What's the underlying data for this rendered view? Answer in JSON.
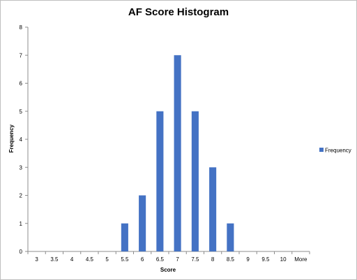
{
  "chart_data": {
    "type": "bar",
    "title": "AF Score Histogram",
    "xlabel": "Score",
    "ylabel": "Frequency",
    "ylim": [
      0,
      8
    ],
    "yticks": [
      0,
      1,
      2,
      3,
      4,
      5,
      6,
      7,
      8
    ],
    "categories": [
      "3",
      "3.5",
      "4",
      "4.5",
      "5",
      "5.5",
      "6",
      "6.5",
      "7",
      "7.5",
      "8",
      "8.5",
      "9",
      "9.5",
      "10",
      "More"
    ],
    "series": [
      {
        "name": "Frequency",
        "values": [
          0,
          0,
          0,
          0,
          0,
          1,
          2,
          5,
          7,
          5,
          3,
          1,
          0,
          0,
          0,
          0
        ]
      }
    ],
    "legend_position": "right",
    "grid": false,
    "colors": {
      "bar": "#4472C4",
      "axis": "#8c8c8c"
    }
  }
}
